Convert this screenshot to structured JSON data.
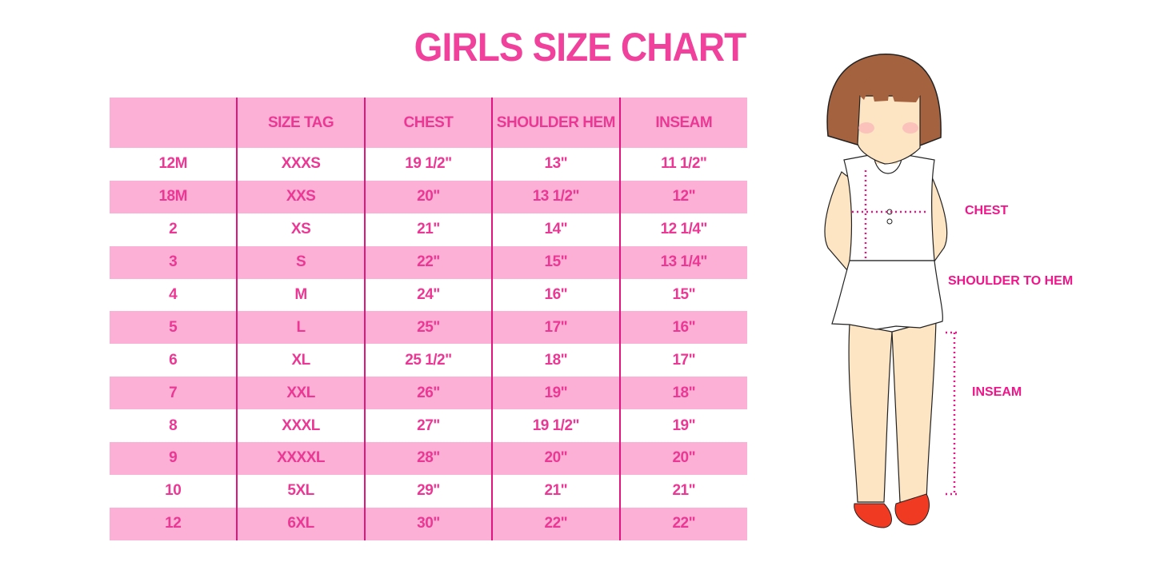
{
  "title": "GIRLS SIZE CHART",
  "table": {
    "headers": [
      "",
      "SIZE TAG",
      "CHEST",
      "SHOULDER HEM",
      "INSEAM"
    ],
    "rows": [
      [
        "12M",
        "XXXS",
        "19 1/2\"",
        "13\"",
        "11 1/2\""
      ],
      [
        "18M",
        "XXS",
        "20\"",
        "13 1/2\"",
        "12\""
      ],
      [
        "2",
        "XS",
        "21\"",
        "14\"",
        "12 1/4\""
      ],
      [
        "3",
        "S",
        "22\"",
        "15\"",
        "13 1/4\""
      ],
      [
        "4",
        "M",
        "24\"",
        "16\"",
        "15\""
      ],
      [
        "5",
        "L",
        "25\"",
        "17\"",
        "16\""
      ],
      [
        "6",
        "XL",
        "25 1/2\"",
        "18\"",
        "17\""
      ],
      [
        "7",
        "XXL",
        "26\"",
        "19\"",
        "18\""
      ],
      [
        "8",
        "XXXL",
        "27\"",
        "19 1/2\"",
        "19\""
      ],
      [
        "9",
        "XXXXL",
        "28\"",
        "20\"",
        "20\""
      ],
      [
        "10",
        "5XL",
        "29\"",
        "21\"",
        "21\""
      ],
      [
        "12",
        "6XL",
        "30\"",
        "22\"",
        "22\""
      ]
    ]
  },
  "figure": {
    "labels": {
      "chest": "CHEST",
      "shoulder_to_hem": "SHOULDER TO HEM",
      "inseam": "INSEAM"
    }
  },
  "colors": {
    "accent": "#f0419c",
    "row_pink": "#fcb0d5",
    "divider": "#e0157f",
    "hair": "#a5623f",
    "skin": "#fde5c4",
    "shoes": "#f03a22"
  }
}
